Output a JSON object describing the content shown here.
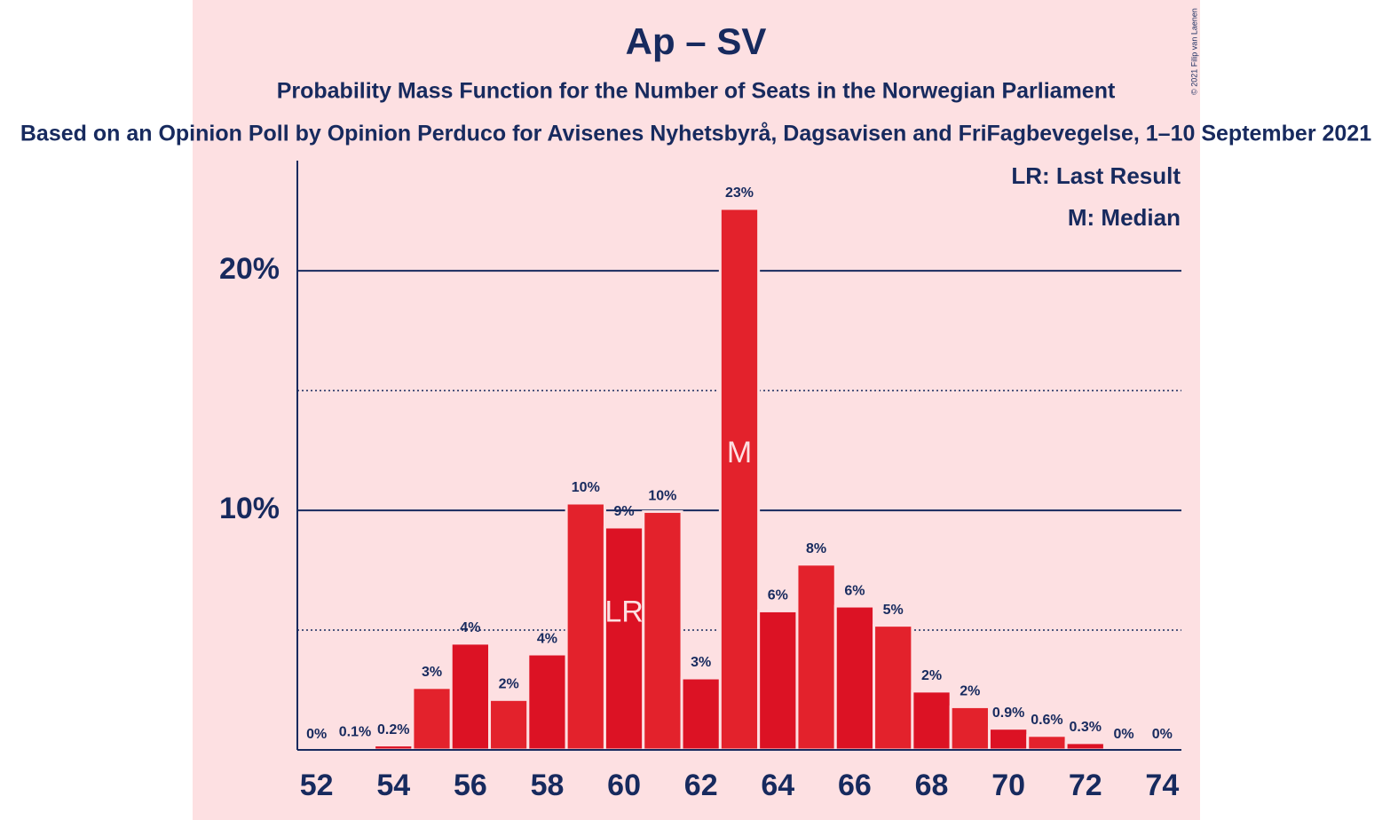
{
  "chart_data": {
    "type": "bar",
    "title": "Ap – SV",
    "subtitle": "Probability Mass Function for the Number of Seats in the Norwegian Parliament",
    "caption": "Based on an Opinion Poll by Opinion Perduco for Avisenes Nyhetsbyrå, Dagsavisen and FriFagbevegelse, 1–10 September 2021",
    "copyright": "© 2021 Filip van Laenen",
    "legend": [
      "LR: Last Result",
      "M: Median"
    ],
    "x": [
      52,
      53,
      54,
      55,
      56,
      57,
      58,
      59,
      60,
      61,
      62,
      63,
      64,
      65,
      66,
      67,
      68,
      69,
      70,
      71,
      72,
      73,
      74
    ],
    "values": [
      0,
      0.1,
      0.2,
      2.6,
      4.45,
      2.1,
      4.0,
      10.3,
      9.3,
      9.95,
      3.0,
      22.6,
      5.8,
      7.75,
      6.0,
      5.2,
      2.45,
      1.8,
      0.9,
      0.6,
      0.3,
      0,
      0
    ],
    "value_labels": [
      "0%",
      "0.1%",
      "0.2%",
      "3%",
      "4%",
      "2%",
      "4%",
      "10%",
      "9%",
      "10%",
      "3%",
      "23%",
      "6%",
      "8%",
      "6%",
      "5%",
      "2%",
      "2%",
      "0.9%",
      "0.6%",
      "0.3%",
      "0%",
      "0%"
    ],
    "colors": [
      "#dc1224",
      "#e3222c"
    ],
    "annotations": [
      {
        "x": 60,
        "text": "LR"
      },
      {
        "x": 63,
        "text": "M"
      }
    ],
    "xlim": [
      51.5,
      74.5
    ],
    "xticks": [
      52,
      54,
      56,
      58,
      60,
      62,
      64,
      66,
      68,
      70,
      72,
      74
    ],
    "ylim": [
      0,
      24.6
    ],
    "yticks": [
      {
        "value": 10,
        "label": "10%"
      },
      {
        "value": 20,
        "label": "20%"
      }
    ],
    "minor_yticks": [
      5,
      15
    ],
    "grid": true
  }
}
